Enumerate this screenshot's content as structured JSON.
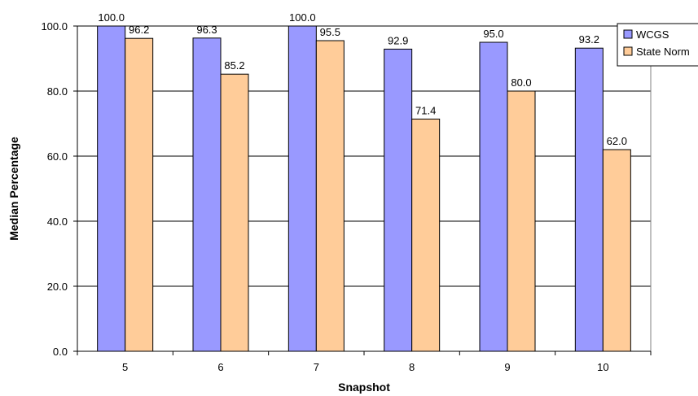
{
  "chart_data": {
    "type": "bar",
    "title": "",
    "xlabel": "Snapshot",
    "ylabel": "Median Percentage",
    "categories": [
      "5",
      "6",
      "7",
      "8",
      "9",
      "10"
    ],
    "series": [
      {
        "name": "WCGS",
        "values": [
          100.0,
          96.3,
          100.0,
          92.9,
          95.0,
          93.2
        ],
        "color": "#9999ff"
      },
      {
        "name": "State Norm",
        "values": [
          96.2,
          85.2,
          95.5,
          71.4,
          80.0,
          62.0
        ],
        "color": "#ffcc99"
      }
    ],
    "ylim": [
      0,
      100
    ],
    "yticks": [
      "0.0",
      "20.0",
      "40.0",
      "60.0",
      "80.0",
      "100.0"
    ],
    "grid": true,
    "legend_position": "top-right",
    "data_labels": true
  }
}
